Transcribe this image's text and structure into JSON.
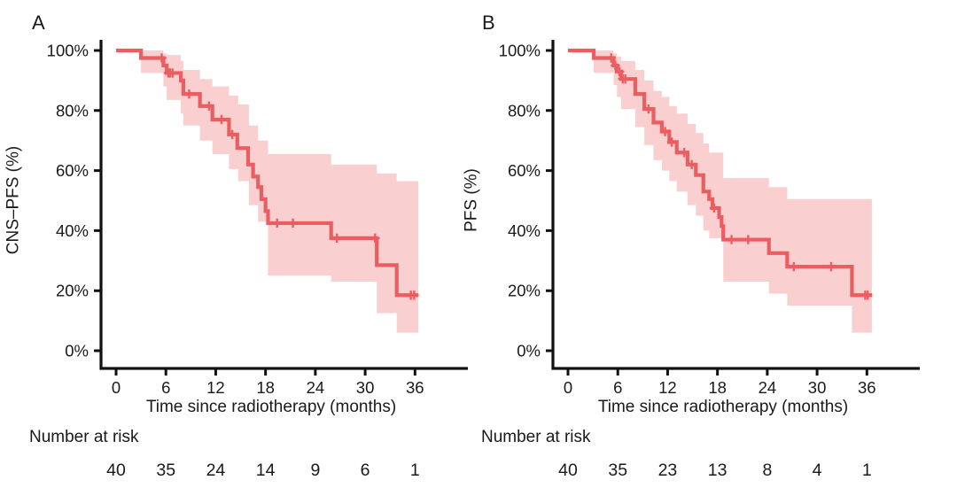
{
  "figure": {
    "background": "#ffffff",
    "colors": {
      "curve": "#EA5D60",
      "band": "#F9CFD0",
      "axis": "#111111",
      "text": "#1a1a1a"
    }
  },
  "chart_data": [
    {
      "type": "line",
      "subtype": "kaplan_meier",
      "panel_label": "A",
      "ylabel": "CNS–PFS (%)",
      "xlabel": "Time since radiotherapy (months)",
      "xlim": [
        0,
        38
      ],
      "ylim": [
        0,
        100
      ],
      "x_ticks": [
        0,
        6,
        12,
        18,
        24,
        30,
        36
      ],
      "y_ticks": [
        100,
        80,
        60,
        40,
        20,
        0
      ],
      "y_tick_suffix": "%",
      "grid": false,
      "legend": null,
      "series": [
        {
          "name": "CNS-PFS",
          "color": "#EA5D60",
          "steps": [
            [
              0,
              100
            ],
            [
              3,
              97.5
            ],
            [
              5.7,
              95
            ],
            [
              6.1,
              92.5
            ],
            [
              7.8,
              90
            ],
            [
              8.1,
              85.5
            ],
            [
              10.1,
              81.5
            ],
            [
              11.6,
              77
            ],
            [
              13.6,
              72
            ],
            [
              14.6,
              67.5
            ],
            [
              15.9,
              62
            ],
            [
              16.5,
              58
            ],
            [
              17.1,
              54.5
            ],
            [
              17.5,
              50.5
            ],
            [
              18,
              46.5
            ],
            [
              18.3,
              42.5
            ],
            [
              25.9,
              37.5
            ],
            [
              31.4,
              28.5
            ],
            [
              33.8,
              18.5
            ]
          ],
          "end_time": 36.4,
          "censor_times": [
            5.5,
            6.3,
            6.5,
            6.8,
            8.8,
            11.2,
            12.7,
            14,
            19.4,
            21.3,
            26.6,
            31.2,
            35.5,
            35.9
          ],
          "ci_band": [
            [
              3,
              92.5,
              100
            ],
            [
              5.7,
              88,
              99
            ],
            [
              6.1,
              83.5,
              98.5
            ],
            [
              7.8,
              79,
              96.5
            ],
            [
              8.1,
              75,
              93.5
            ],
            [
              10.1,
              70,
              90.5
            ],
            [
              11.6,
              65.5,
              88
            ],
            [
              13.6,
              60.5,
              85
            ],
            [
              14.7,
              56.5,
              82
            ],
            [
              16,
              48.5,
              75
            ],
            [
              17.1,
              43,
              70
            ],
            [
              18.3,
              25,
              65.5
            ],
            [
              25.9,
              23,
              62
            ],
            [
              31.4,
              12.5,
              59
            ],
            [
              33.8,
              6,
              56.5
            ]
          ]
        }
      ],
      "risk_table": {
        "label": "Number at risk",
        "times": [
          0,
          6,
          12,
          18,
          24,
          30,
          36
        ],
        "counts": [
          40,
          35,
          24,
          14,
          9,
          6,
          1
        ]
      }
    },
    {
      "type": "line",
      "subtype": "kaplan_meier",
      "panel_label": "B",
      "ylabel": "PFS (%)",
      "xlabel": "Time since radiotherapy (months)",
      "xlim": [
        0,
        38
      ],
      "ylim": [
        0,
        100
      ],
      "x_ticks": [
        0,
        6,
        12,
        18,
        24,
        30,
        36
      ],
      "y_ticks": [
        100,
        80,
        60,
        40,
        20,
        0
      ],
      "y_tick_suffix": "%",
      "grid": false,
      "legend": null,
      "series": [
        {
          "name": "PFS",
          "color": "#EA5D60",
          "steps": [
            [
              0,
              100
            ],
            [
              3.1,
              97.5
            ],
            [
              5.5,
              95
            ],
            [
              5.9,
              93
            ],
            [
              6.4,
              90.5
            ],
            [
              8.1,
              85.5
            ],
            [
              9.2,
              80.5
            ],
            [
              10.3,
              76
            ],
            [
              11.3,
              73
            ],
            [
              12.2,
              69.5
            ],
            [
              13.1,
              66
            ],
            [
              14.4,
              62
            ],
            [
              15.4,
              58.5
            ],
            [
              16.3,
              53
            ],
            [
              17,
              50.5
            ],
            [
              17.4,
              47.5
            ],
            [
              18.2,
              44.5
            ],
            [
              18.5,
              41.5
            ],
            [
              18.7,
              37
            ],
            [
              24.2,
              32.5
            ],
            [
              26.4,
              28
            ],
            [
              34.2,
              18.5
            ]
          ],
          "end_time": 36.6,
          "censor_times": [
            5.2,
            5.7,
            6.2,
            6.6,
            6.9,
            9.7,
            11.7,
            12.5,
            14,
            14.9,
            17.6,
            19.7,
            21.7,
            27.2,
            31.7,
            35.8,
            36.1
          ],
          "ci_band": [
            [
              3.1,
              92.5,
              100
            ],
            [
              5.5,
              88.5,
              99
            ],
            [
              5.9,
              84.5,
              98
            ],
            [
              6.4,
              80.5,
              96.5
            ],
            [
              8.1,
              74.5,
              93.5
            ],
            [
              9.2,
              68.5,
              90
            ],
            [
              10.3,
              63.5,
              86.5
            ],
            [
              11.3,
              60,
              84.5
            ],
            [
              12.2,
              56.5,
              81.5
            ],
            [
              13.1,
              53,
              79
            ],
            [
              14.4,
              48.5,
              75.5
            ],
            [
              15.4,
              45,
              72.5
            ],
            [
              16.3,
              40,
              69
            ],
            [
              17,
              37.5,
              66
            ],
            [
              18.7,
              23,
              57.5
            ],
            [
              24.2,
              19,
              54.5
            ],
            [
              26.4,
              15,
              50.5
            ],
            [
              34.2,
              6,
              50.5
            ]
          ]
        }
      ],
      "risk_table": {
        "label": "Number at risk",
        "times": [
          0,
          6,
          12,
          18,
          24,
          30,
          36
        ],
        "counts": [
          40,
          35,
          23,
          13,
          8,
          4,
          1
        ]
      }
    }
  ]
}
